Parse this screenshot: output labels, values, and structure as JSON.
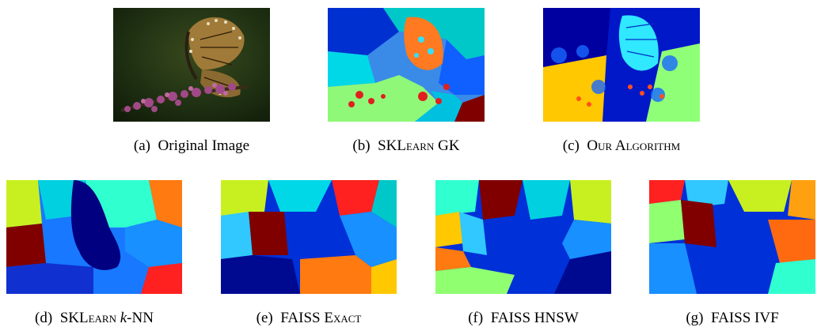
{
  "figure": {
    "panels": [
      {
        "id": "a",
        "label": "(a)",
        "parts": [
          {
            "text": "Original Image",
            "style": "plain"
          }
        ]
      },
      {
        "id": "b",
        "label": "(b)",
        "parts": [
          {
            "text": "SKLearn",
            "style": "sc"
          },
          {
            "text": " GK",
            "style": "plain"
          }
        ]
      },
      {
        "id": "c",
        "label": "(c)",
        "parts": [
          {
            "text": "Our Algorithm",
            "style": "sc"
          }
        ]
      },
      {
        "id": "d",
        "label": "(d)",
        "parts": [
          {
            "text": "SKLearn",
            "style": "sc"
          },
          {
            "text": " ",
            "style": "plain"
          },
          {
            "text": "k",
            "style": "it"
          },
          {
            "text": "-NN",
            "style": "plain"
          }
        ]
      },
      {
        "id": "e",
        "label": "(e)",
        "parts": [
          {
            "text": "FAISS ",
            "style": "plain"
          },
          {
            "text": "Exact",
            "style": "sc"
          }
        ]
      },
      {
        "id": "f",
        "label": "(f)",
        "parts": [
          {
            "text": "FAISS HNSW",
            "style": "plain"
          }
        ]
      },
      {
        "id": "g",
        "label": "(g)",
        "parts": [
          {
            "text": "FAISS IVF",
            "style": "plain"
          }
        ]
      }
    ]
  }
}
